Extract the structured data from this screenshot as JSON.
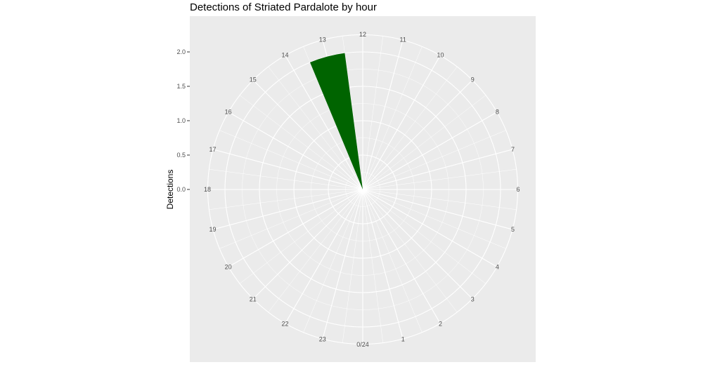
{
  "chart_data": {
    "type": "polar-bar",
    "title": "Detections of Striated Pardalote by hour",
    "ylabel": "Detections",
    "categories": [
      "0/24",
      "1",
      "2",
      "3",
      "4",
      "5",
      "6",
      "7",
      "8",
      "9",
      "10",
      "11",
      "12",
      "13",
      "14",
      "15",
      "16",
      "17",
      "18",
      "19",
      "20",
      "21",
      "22",
      "23"
    ],
    "series": [
      {
        "values": [
          0,
          0,
          0,
          0,
          0,
          0,
          0,
          0,
          0,
          0,
          0,
          0,
          0,
          2,
          0,
          0,
          0,
          0,
          0,
          0,
          0,
          0,
          0,
          0
        ]
      }
    ],
    "y_ticks": [
      "0.0",
      "0.5",
      "1.0",
      "1.5",
      "2.0"
    ],
    "ylim": [
      0,
      2.5
    ],
    "grid": true,
    "colors": {
      "bar": "#006400",
      "panel": "#ebebeb",
      "grid": "#ffffff",
      "tick_text": "#4d4d4d"
    }
  }
}
